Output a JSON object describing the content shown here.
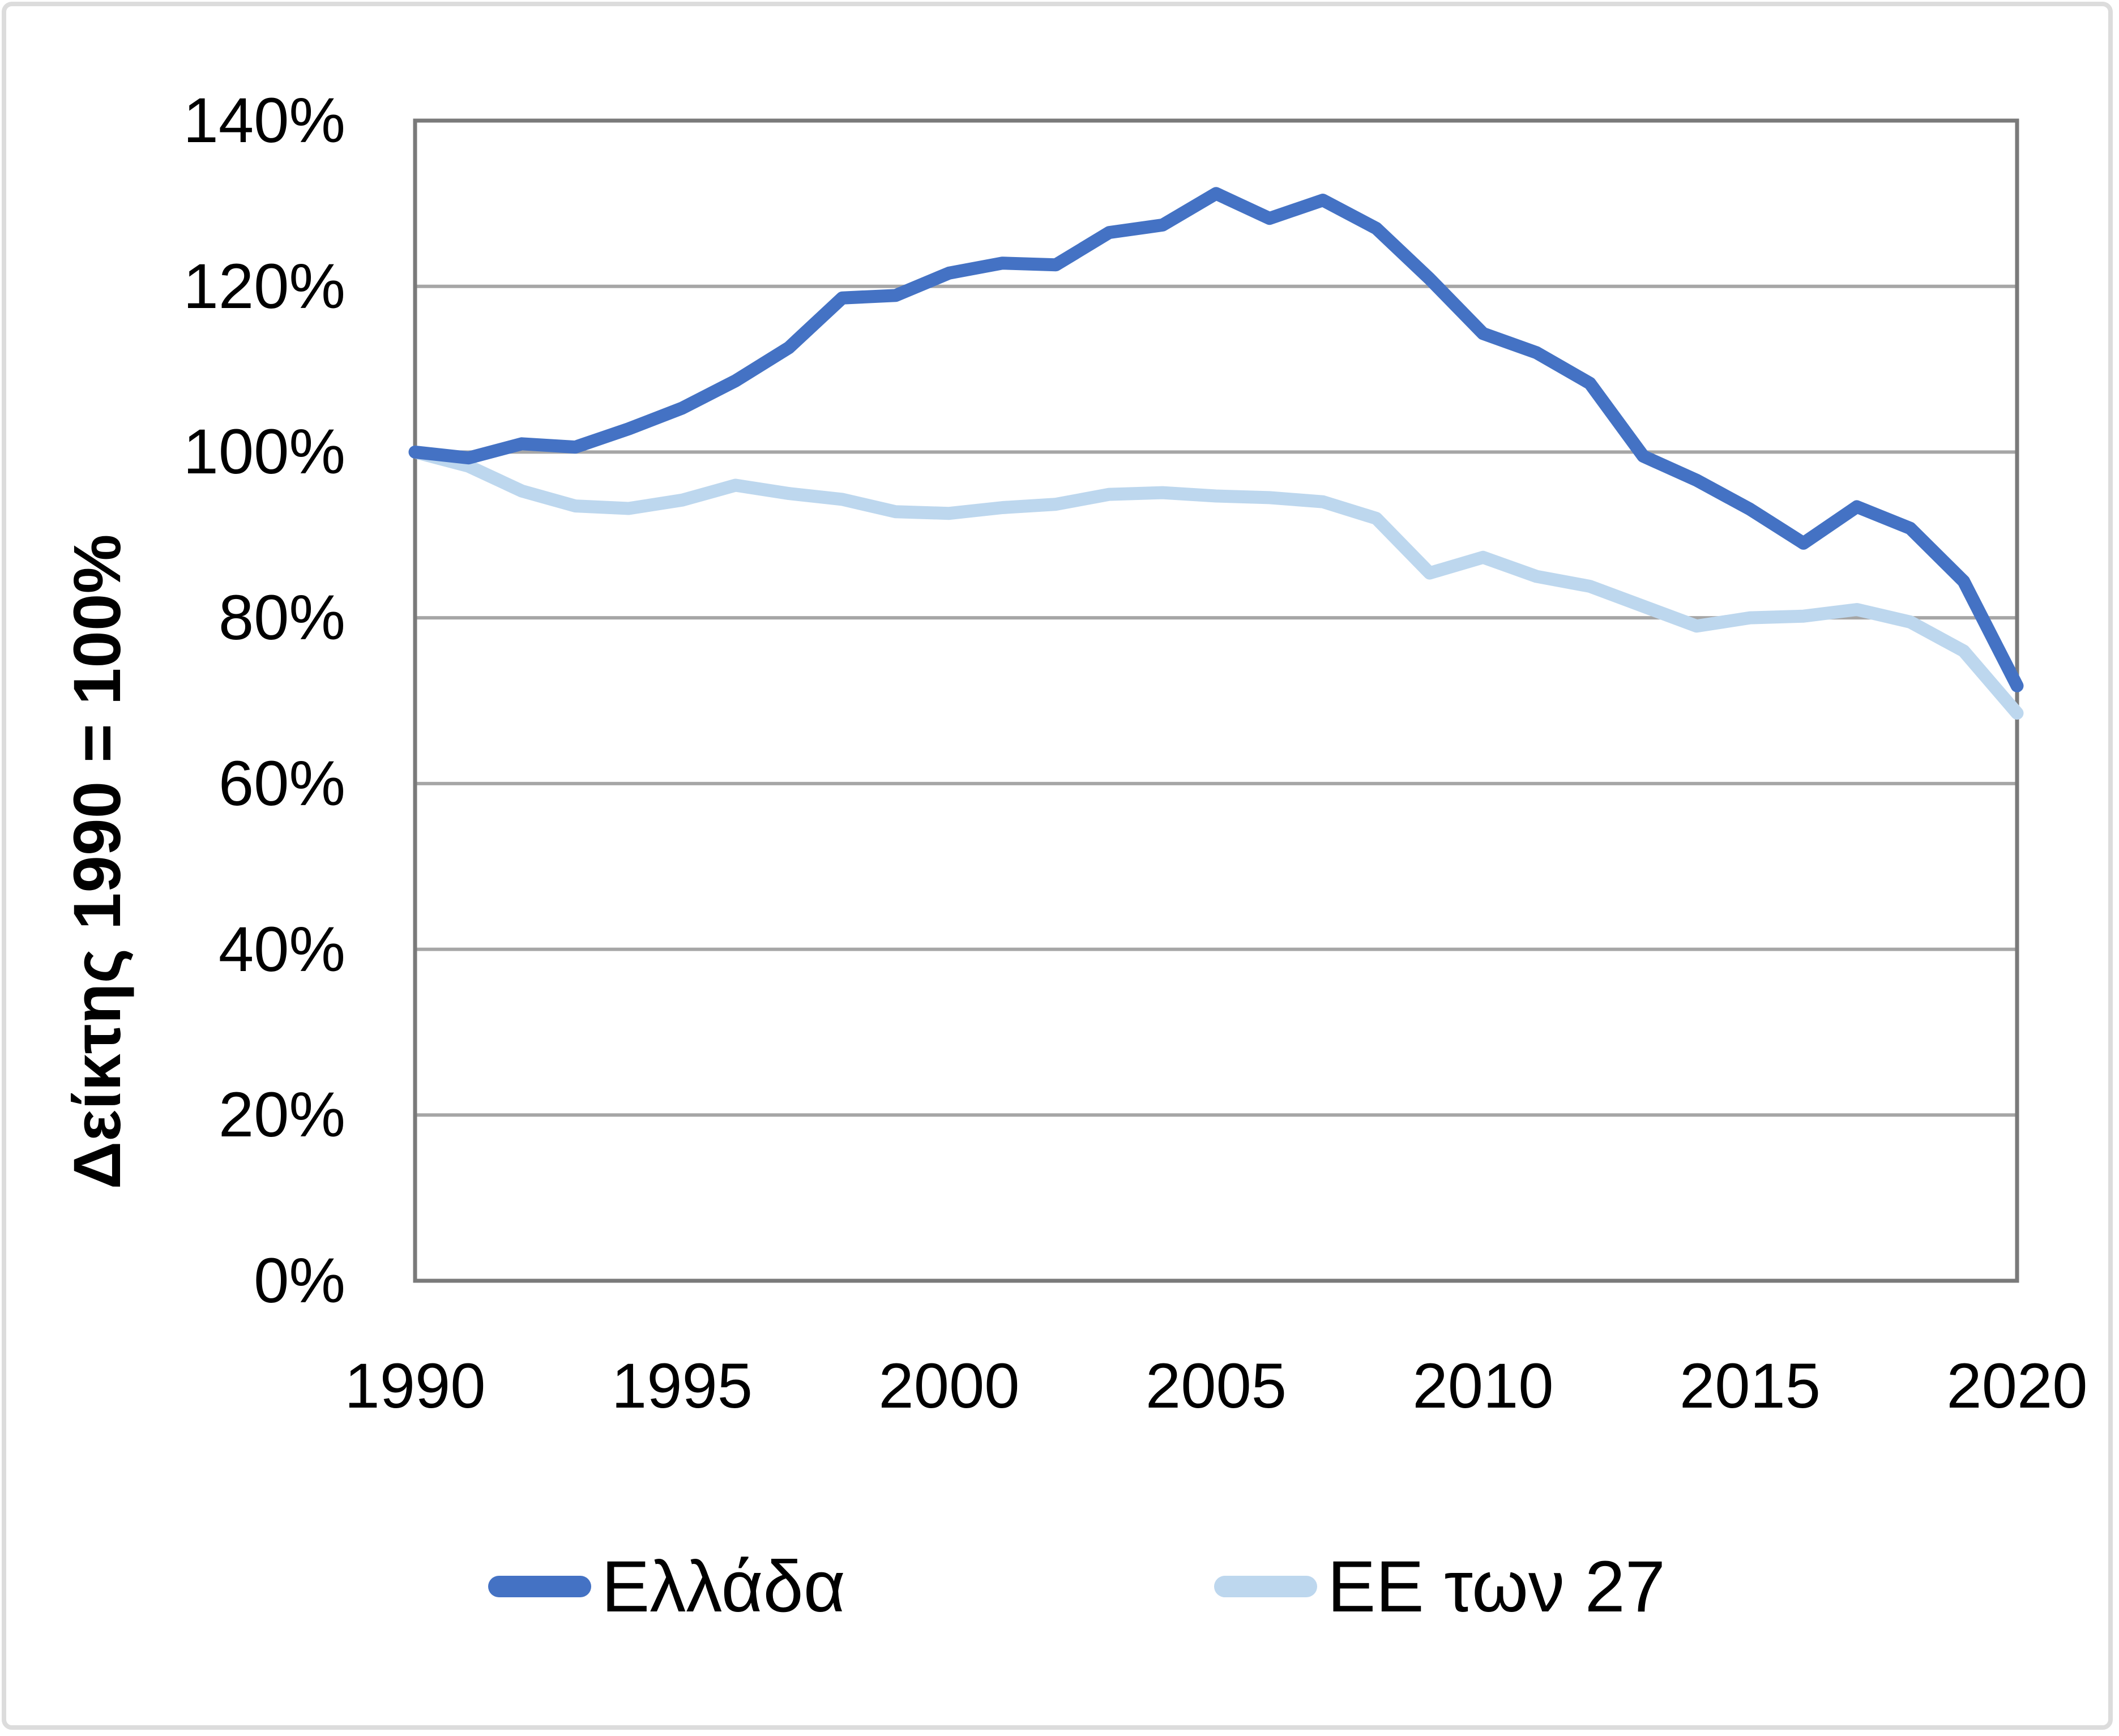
{
  "figure": {
    "background": "#ffffff",
    "frame_color": "#dcdcdc",
    "plot_border_color": "#7a7a7a",
    "gridline_color": "#a6a6a6"
  },
  "chart_data": {
    "type": "line",
    "title": "",
    "xlabel": "",
    "ylabel": "Δείκτης 1990 = 100%",
    "ylim": [
      0,
      140
    ],
    "xlim": [
      1990,
      2020
    ],
    "grid": "horizontal",
    "legend_position": "bottom",
    "y_ticks": [
      {
        "value": 0,
        "label": "0%"
      },
      {
        "value": 20,
        "label": "20%"
      },
      {
        "value": 40,
        "label": "40%"
      },
      {
        "value": 60,
        "label": "60%"
      },
      {
        "value": 80,
        "label": "80%"
      },
      {
        "value": 100,
        "label": "100%"
      },
      {
        "value": 120,
        "label": "120%"
      },
      {
        "value": 140,
        "label": "140%"
      }
    ],
    "x_ticks": [
      {
        "value": 1990,
        "label": "1990"
      },
      {
        "value": 1995,
        "label": "1995"
      },
      {
        "value": 2000,
        "label": "2000"
      },
      {
        "value": 2005,
        "label": "2005"
      },
      {
        "value": 2010,
        "label": "2010"
      },
      {
        "value": 2015,
        "label": "2015"
      },
      {
        "value": 2020,
        "label": "2020"
      }
    ],
    "x": [
      1990,
      1991,
      1992,
      1993,
      1994,
      1995,
      1996,
      1997,
      1998,
      1999,
      2000,
      2001,
      2002,
      2003,
      2004,
      2005,
      2006,
      2007,
      2008,
      2009,
      2010,
      2011,
      2012,
      2013,
      2014,
      2015,
      2016,
      2017,
      2018,
      2019,
      2020
    ],
    "series": [
      {
        "name": "Ελλάδα",
        "color": "#4472C4",
        "values": [
          100.0,
          99.3,
          101.0,
          100.6,
          102.8,
          105.3,
          108.6,
          112.6,
          118.6,
          118.9,
          121.6,
          122.8,
          122.6,
          126.5,
          127.4,
          131.2,
          128.2,
          130.4,
          127.0,
          120.9,
          114.3,
          112.0,
          108.3,
          99.5,
          96.6,
          93.1,
          89.0,
          93.4,
          90.8,
          84.4,
          71.8
        ]
      },
      {
        "name": "ΕΕ των 27",
        "color": "#BDD7EE",
        "values": [
          100.0,
          98.3,
          95.3,
          93.5,
          93.2,
          94.2,
          96.0,
          95.0,
          94.3,
          92.8,
          92.6,
          93.3,
          93.7,
          94.9,
          95.1,
          94.7,
          94.5,
          94.0,
          92.0,
          85.4,
          87.3,
          85.0,
          83.8,
          81.4,
          79.0,
          80.0,
          80.2,
          81.0,
          79.5,
          76.0,
          68.5
        ]
      }
    ]
  },
  "legend": {
    "items": [
      {
        "label": "Ελλάδα",
        "color": "#4472C4"
      },
      {
        "label": "ΕΕ των 27",
        "color": "#BDD7EE"
      }
    ]
  }
}
